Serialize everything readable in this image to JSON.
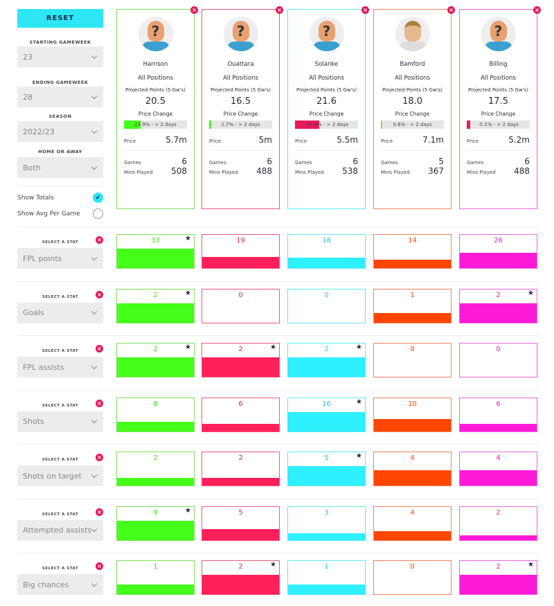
{
  "sidebar": {
    "reset": "RESET",
    "filters": [
      {
        "label": "STARTING GAMEWEEK",
        "value": "23"
      },
      {
        "label": "ENDING GAMEWEEK",
        "value": "28"
      },
      {
        "label": "SEASON",
        "value": "2022/23"
      },
      {
        "label": "HOME OR AWAY",
        "value": "Both"
      }
    ],
    "show_totals": {
      "label": "Show Totals",
      "checked": true
    },
    "show_avg": {
      "label": "Show Avg Per Game",
      "checked": false
    },
    "stat_label": "SELECT A STAT"
  },
  "card_labels": {
    "projected": "Projected Points (5 Gw's)",
    "price_change": "Price Change",
    "price": "Price",
    "games": "Games",
    "mins": "Mins Played"
  },
  "players": [
    {
      "name": "Harrison",
      "position": "All Positions",
      "projected": "20.5",
      "price_change": "23.9% - > 2 days",
      "price_change_pct": 23.9,
      "price": "5.7m",
      "games": "6",
      "mins": "508",
      "color": "#7ee05a",
      "fill": "#44ff1a",
      "text": "#44dd1a",
      "avatar": "unknown"
    },
    {
      "name": "Ouattara",
      "position": "All Positions",
      "projected": "16.5",
      "price_change": "2.7% - > 2 days",
      "price_change_pct": 2.7,
      "price": "5m",
      "games": "6",
      "mins": "488",
      "color": "#e8587e",
      "fill": "#ff1f5a",
      "text": "#e8195a",
      "avatar": "unknown"
    },
    {
      "name": "Solanke",
      "position": "All Positions",
      "projected": "21.6",
      "price_change": "-34.4% - > 2 days",
      "price_change_pct": -34.4,
      "price": "5.5m",
      "games": "6",
      "mins": "538",
      "color": "#5ee8f0",
      "fill": "#2ef0ff",
      "text": "#22c8e0",
      "avatar": "unknown"
    },
    {
      "name": "Bamford",
      "position": "All Positions",
      "projected": "18.0",
      "price_change": "0.6% - > 2 days",
      "price_change_pct": 0.6,
      "price": "7.1m",
      "games": "5",
      "mins": "367",
      "color": "#f08060",
      "fill": "#ff4500",
      "text": "#ff4500",
      "avatar": "photo"
    },
    {
      "name": "Billing",
      "position": "All Positions",
      "projected": "17.5",
      "price_change": "-5.1% - > 2 days",
      "price_change_pct": -5.1,
      "price": "5.2m",
      "games": "6",
      "mins": "488",
      "color": "#e868d8",
      "fill": "#ff1ad9",
      "text": "#e81ac8",
      "avatar": "unknown"
    }
  ],
  "stats": [
    {
      "name": "FPL points",
      "values": [
        33,
        19,
        18,
        14,
        26
      ]
    },
    {
      "name": "Goals",
      "values": [
        2,
        0,
        0,
        1,
        2
      ]
    },
    {
      "name": "FPL assists",
      "values": [
        2,
        2,
        2,
        0,
        0
      ]
    },
    {
      "name": "Shots",
      "values": [
        8,
        6,
        16,
        10,
        6
      ]
    },
    {
      "name": "Shots on target",
      "values": [
        2,
        2,
        5,
        4,
        4
      ]
    },
    {
      "name": "Attempted assists",
      "values": [
        9,
        5,
        3,
        4,
        2
      ]
    },
    {
      "name": "Big chances",
      "values": [
        1,
        2,
        1,
        0,
        2
      ]
    }
  ]
}
